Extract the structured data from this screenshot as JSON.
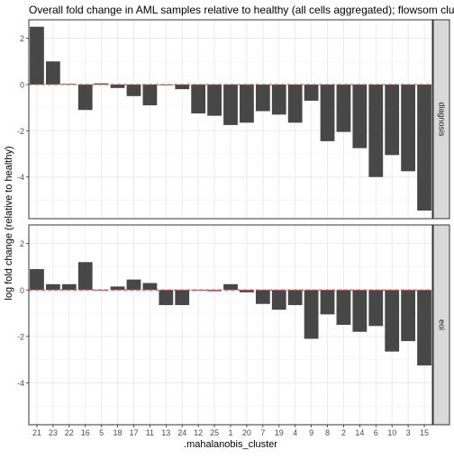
{
  "chart_data": {
    "type": "bar",
    "title": "Overall fold change in AML samples relative to healthy (all cells aggregated); flowsom clusters",
    "xlabel": ".mahalanobis_cluster",
    "ylabel": "log fold change (relative to healthy)",
    "ylim": [
      -5.8,
      2.8
    ],
    "yticks": [
      2,
      0,
      -2,
      -4
    ],
    "ytick_labels": [
      "2",
      "0",
      "-2",
      "-4"
    ],
    "grid": true,
    "reference_line": {
      "y": 0,
      "color": "#d9534f",
      "style": "dashed"
    },
    "categories": [
      "21",
      "23",
      "22",
      "16",
      "5",
      "18",
      "17",
      "11",
      "13",
      "24",
      "12",
      "25",
      "1",
      "20",
      "7",
      "19",
      "4",
      "9",
      "8",
      "2",
      "14",
      "6",
      "10",
      "3",
      "15"
    ],
    "panels": [
      {
        "strip_label": "diagnosis",
        "values": [
          2.5,
          1.0,
          0.03,
          -1.1,
          0.05,
          -0.15,
          -0.5,
          -0.9,
          0.0,
          -0.2,
          -1.25,
          -1.35,
          -1.75,
          -1.65,
          -1.15,
          -1.3,
          -1.65,
          -0.7,
          -2.45,
          -2.05,
          -2.75,
          -4.0,
          -3.05,
          -3.75,
          -5.45
        ]
      },
      {
        "strip_label": "eoi",
        "values": [
          0.9,
          0.25,
          0.25,
          1.2,
          -0.02,
          0.15,
          0.45,
          0.3,
          -0.65,
          -0.65,
          -0.02,
          -0.05,
          0.25,
          -0.1,
          -0.6,
          -0.85,
          -0.65,
          -2.1,
          -1.05,
          -1.5,
          -1.8,
          -1.55,
          -2.65,
          -2.2,
          -3.25
        ]
      }
    ],
    "bar_color": "#474747"
  }
}
